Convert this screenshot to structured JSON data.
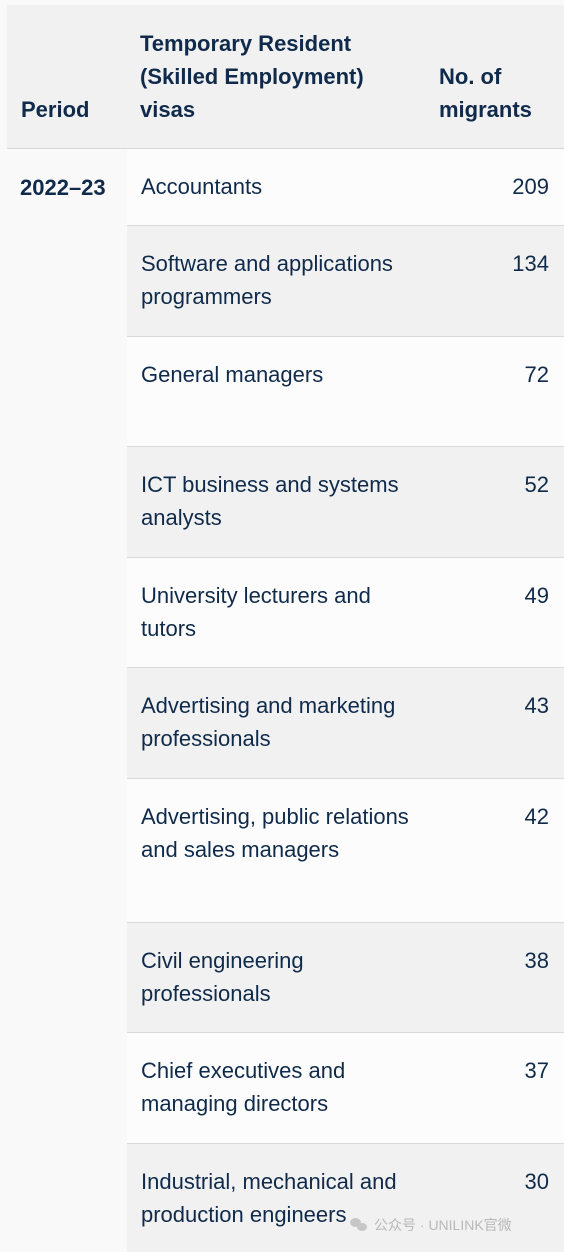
{
  "table": {
    "headers": {
      "period": "Period",
      "visa": "Temporary Resident (Skilled Employment) visas",
      "count": "No. of migrants"
    },
    "period_value": "2022–23",
    "rows": [
      {
        "occupation": "Accountants",
        "count": "209"
      },
      {
        "occupation": "Software and applications programmers",
        "count": "134"
      },
      {
        "occupation": "General managers",
        "count": "72"
      },
      {
        "occupation": "ICT business and systems analysts",
        "count": "52"
      },
      {
        "occupation": "University lecturers and tutors",
        "count": "49"
      },
      {
        "occupation": "Advertising and marketing professionals",
        "count": "43"
      },
      {
        "occupation": "Advertising, public relations and sales managers",
        "count": "42"
      },
      {
        "occupation": "Civil engineering professionals",
        "count": "38"
      },
      {
        "occupation": "Chief executives and managing directors",
        "count": "37"
      },
      {
        "occupation": "Industrial, mechanical and production engineers",
        "count": "30"
      }
    ]
  },
  "watermark": {
    "icon": "wechat-icon",
    "text": "公众号 · UNILINK官微"
  }
}
